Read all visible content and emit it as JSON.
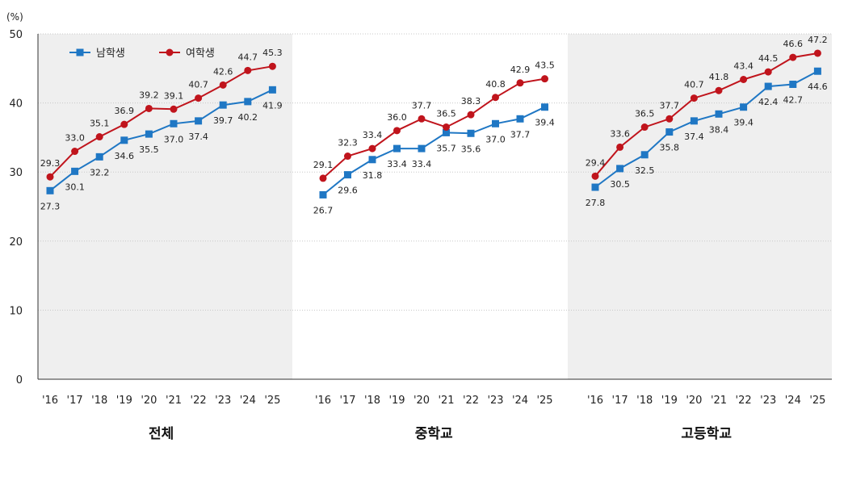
{
  "chart_data": {
    "type": "line",
    "unit_label": "(%)",
    "ylim": [
      0,
      50
    ],
    "yticks": [
      0,
      10,
      20,
      30,
      40,
      50
    ],
    "grid": true,
    "legend_position": "top-left",
    "categories": [
      "'16",
      "'17",
      "'18",
      "'19",
      "'20",
      "'21",
      "'22",
      "'23",
      "'24",
      "'25"
    ],
    "series_meta": [
      {
        "name": "남학생",
        "color": "#1f77c4",
        "marker": "square"
      },
      {
        "name": "여학생",
        "color": "#c0141c",
        "marker": "circle"
      }
    ],
    "groups": [
      {
        "label": "전체",
        "shaded": true,
        "series": [
          {
            "name": "남학생",
            "values": [
              27.3,
              30.1,
              32.2,
              34.6,
              35.5,
              37.0,
              37.4,
              39.7,
              40.2,
              41.9
            ]
          },
          {
            "name": "여학생",
            "values": [
              29.3,
              33.0,
              35.1,
              36.9,
              39.2,
              39.1,
              40.7,
              42.6,
              44.7,
              45.3
            ]
          }
        ]
      },
      {
        "label": "중학교",
        "shaded": false,
        "series": [
          {
            "name": "남학생",
            "values": [
              26.7,
              29.6,
              31.8,
              33.4,
              33.4,
              35.7,
              35.6,
              37.0,
              37.7,
              39.4
            ]
          },
          {
            "name": "여학생",
            "values": [
              29.1,
              32.3,
              33.4,
              36.0,
              37.7,
              36.5,
              38.3,
              40.8,
              42.9,
              43.5
            ]
          }
        ]
      },
      {
        "label": "고등학교",
        "shaded": true,
        "series": [
          {
            "name": "남학생",
            "values": [
              27.8,
              30.5,
              32.5,
              35.8,
              37.4,
              38.4,
              39.4,
              42.4,
              42.7,
              44.6
            ]
          },
          {
            "name": "여학생",
            "values": [
              29.4,
              33.6,
              36.5,
              37.7,
              40.7,
              41.8,
              43.4,
              44.5,
              46.6,
              47.2
            ]
          }
        ]
      }
    ]
  }
}
